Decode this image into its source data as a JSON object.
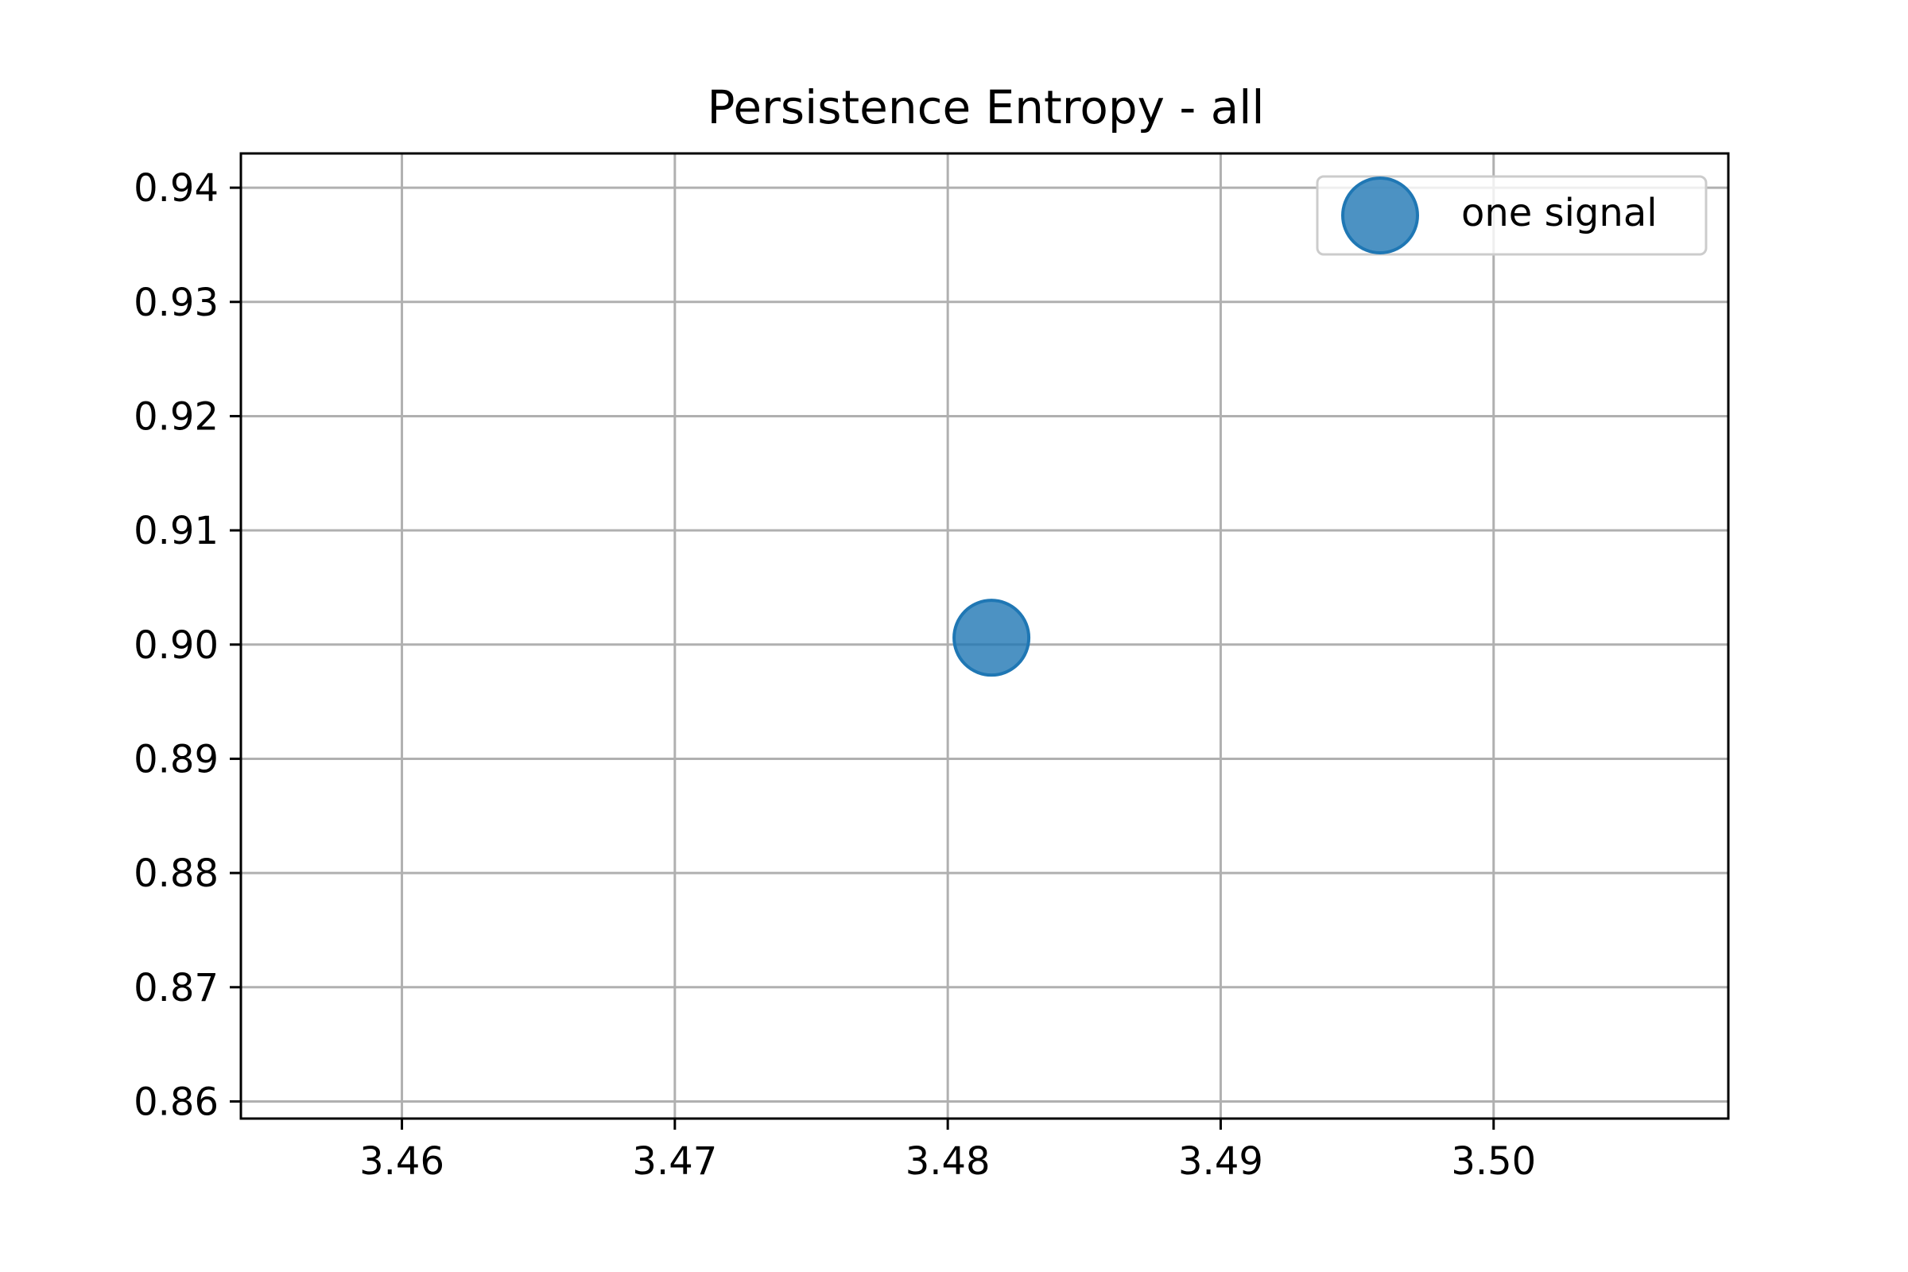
{
  "chart_data": {
    "type": "scatter",
    "title": "Persistence Entropy - all",
    "xlabel": "",
    "ylabel": "",
    "xlim": [
      3.4541,
      3.5086
    ],
    "ylim": [
      0.8585,
      0.943
    ],
    "xticks": [
      "3.46",
      "3.47",
      "3.48",
      "3.49",
      "3.50"
    ],
    "yticks": [
      "0.86",
      "0.87",
      "0.88",
      "0.89",
      "0.90",
      "0.91",
      "0.92",
      "0.93",
      "0.94"
    ],
    "grid": true,
    "legend_position": "top-right",
    "series": [
      {
        "name": "one signal",
        "color": "#1f77b4",
        "points": [
          {
            "x": 3.4816,
            "y": 0.9006
          }
        ]
      }
    ]
  }
}
